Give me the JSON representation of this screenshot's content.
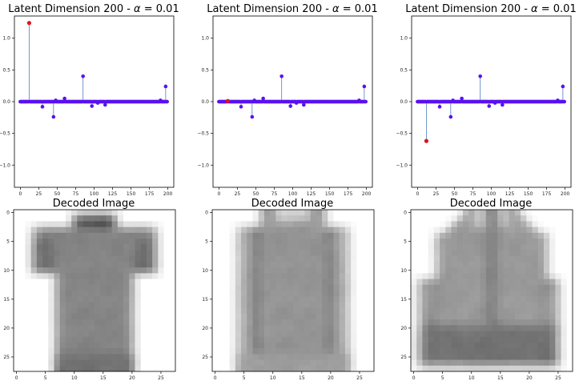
{
  "chart_data": [
    {
      "type": "stem",
      "title_prefix": "Latent Dimension 200 - ",
      "title_symbol": "α",
      "title_suffix": " = 0.01",
      "xlim": [
        -8,
        208
      ],
      "ylim": [
        -1.35,
        1.35
      ],
      "xticks": [
        0,
        25,
        50,
        75,
        100,
        125,
        150,
        175,
        200
      ],
      "yticks": [
        1.0,
        0.5,
        0.0,
        -0.5,
        -1.0
      ],
      "ytick_labels": [
        "1.0",
        "0.5",
        "0.0",
        "−0.5",
        "−1.0"
      ],
      "n_points": 200,
      "baseline": 0,
      "stems": [
        [
          12,
          1.24
        ],
        [
          30,
          -0.08
        ],
        [
          45,
          -0.24
        ],
        [
          48,
          0.02
        ],
        [
          60,
          0.05
        ],
        [
          85,
          0.4
        ],
        [
          97,
          -0.07
        ],
        [
          105,
          -0.02
        ],
        [
          115,
          -0.05
        ],
        [
          190,
          0.02
        ],
        [
          197,
          0.24
        ]
      ],
      "highlight": {
        "x": 12,
        "y": 1.24
      },
      "colors": {
        "points": "#5a10f0",
        "stem": "#4f7fbf",
        "highlight": "#e0141e"
      }
    },
    {
      "type": "stem",
      "title_prefix": "Latent Dimension 200 - ",
      "title_symbol": "α",
      "title_suffix": " = 0.01",
      "xlim": [
        -8,
        208
      ],
      "ylim": [
        -1.35,
        1.35
      ],
      "xticks": [
        0,
        25,
        50,
        75,
        100,
        125,
        150,
        175,
        200
      ],
      "yticks": [
        1.0,
        0.5,
        0.0,
        -0.5,
        -1.0
      ],
      "ytick_labels": [
        "1.0",
        "0.5",
        "0.0",
        "−0.5",
        "−1.0"
      ],
      "n_points": 200,
      "baseline": 0,
      "stems": [
        [
          12,
          0.01
        ],
        [
          30,
          -0.08
        ],
        [
          45,
          -0.24
        ],
        [
          48,
          0.02
        ],
        [
          60,
          0.05
        ],
        [
          85,
          0.4
        ],
        [
          97,
          -0.07
        ],
        [
          105,
          -0.02
        ],
        [
          115,
          -0.05
        ],
        [
          190,
          0.02
        ],
        [
          197,
          0.24
        ]
      ],
      "highlight": {
        "x": 12,
        "y": 0.01
      },
      "colors": {
        "points": "#5a10f0",
        "stem": "#4f7fbf",
        "highlight": "#e0141e"
      }
    },
    {
      "type": "stem",
      "title_prefix": "Latent Dimension 200 - ",
      "title_symbol": "α",
      "title_suffix": " = 0.01",
      "xlim": [
        -8,
        208
      ],
      "ylim": [
        -1.35,
        1.35
      ],
      "xticks": [
        0,
        25,
        50,
        75,
        100,
        125,
        150,
        175,
        200
      ],
      "yticks": [
        1.0,
        0.5,
        0.0,
        -0.5,
        -1.0
      ],
      "ytick_labels": [
        "1.0",
        "0.5",
        "0.0",
        "−0.5",
        "−1.0"
      ],
      "n_points": 200,
      "baseline": 0,
      "stems": [
        [
          12,
          -0.62
        ],
        [
          30,
          -0.08
        ],
        [
          45,
          -0.24
        ],
        [
          48,
          0.02
        ],
        [
          60,
          0.05
        ],
        [
          85,
          0.4
        ],
        [
          97,
          -0.07
        ],
        [
          105,
          -0.02
        ],
        [
          115,
          -0.05
        ],
        [
          190,
          0.02
        ],
        [
          197,
          0.24
        ]
      ],
      "highlight": {
        "x": 12,
        "y": -0.62
      },
      "colors": {
        "points": "#5a10f0",
        "stem": "#4f7fbf",
        "highlight": "#e0141e"
      }
    },
    {
      "type": "heatmap",
      "title": "Decoded Image",
      "shape": [
        28,
        28
      ],
      "xticks": [
        0,
        5,
        10,
        15,
        20,
        25
      ],
      "yticks": [
        0,
        5,
        10,
        15,
        20,
        25
      ],
      "colormap": "gray_r",
      "garment": "t-shirt"
    },
    {
      "type": "heatmap",
      "title": "Decoded Image",
      "shape": [
        28,
        28
      ],
      "xticks": [
        0,
        5,
        10,
        15,
        20,
        25
      ],
      "yticks": [
        0,
        5,
        10,
        15,
        20,
        25
      ],
      "colormap": "gray_r",
      "garment": "pullover"
    },
    {
      "type": "heatmap",
      "title": "Decoded Image",
      "shape": [
        28,
        28
      ],
      "xticks": [
        0,
        5,
        10,
        15,
        20,
        25
      ],
      "yticks": [
        0,
        5,
        10,
        15,
        20,
        25
      ],
      "colormap": "gray_r",
      "garment": "coat"
    }
  ]
}
